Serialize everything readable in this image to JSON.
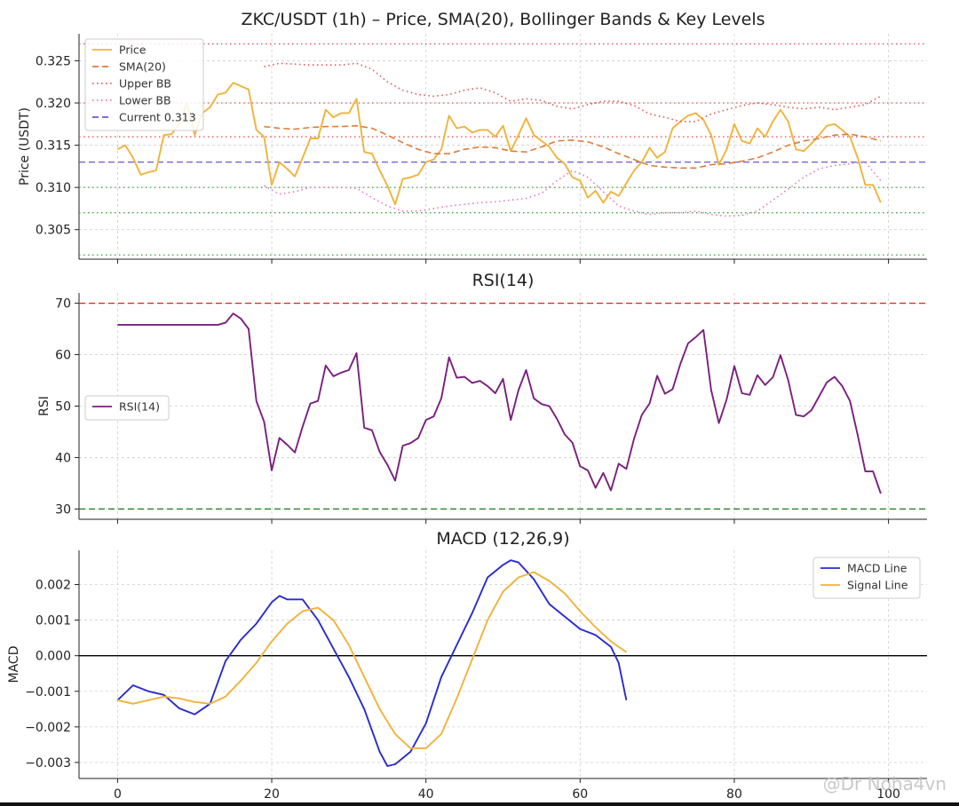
{
  "watermark": "@Dr Noha4vn",
  "chart_data": [
    {
      "type": "line",
      "title": "ZKC/USDT (1h) – Price, SMA(20), Bollinger Bands & Key Levels",
      "ylabel": "Price (USDT)",
      "xlim": [
        -5,
        105
      ],
      "ylim": [
        0.3015,
        0.3282
      ],
      "yticks": [
        0.305,
        0.31,
        0.315,
        0.32,
        0.325
      ],
      "ytick_labels": [
        "0.305",
        "0.310",
        "0.315",
        "0.320",
        "0.325"
      ],
      "grid": true,
      "legend_position": "top-left",
      "series": [
        {
          "name": "Price",
          "color": "#f0b33b",
          "x": [
            0,
            1,
            2,
            3,
            4,
            5,
            6,
            7,
            8,
            9,
            10,
            11,
            12,
            13,
            14,
            15,
            16,
            17,
            18,
            19,
            20,
            21,
            22,
            23,
            24,
            25,
            26,
            27,
            28,
            29,
            30,
            31,
            32,
            33,
            34,
            35,
            36,
            37,
            38,
            39,
            40,
            41,
            42,
            43,
            44,
            45,
            46,
            47,
            48,
            49,
            50,
            51,
            52,
            53,
            54,
            55,
            56,
            57,
            58,
            59,
            60,
            61,
            62,
            63,
            64,
            65,
            66,
            67,
            68,
            69,
            70,
            71,
            72,
            73,
            74,
            75,
            76,
            77,
            78,
            79,
            80,
            81,
            82,
            83,
            84,
            85,
            86,
            87,
            88,
            89,
            90,
            91,
            92,
            93,
            94,
            95,
            96,
            97,
            98,
            99
          ],
          "y": [
            0.3145,
            0.315,
            0.3135,
            0.3115,
            0.3118,
            0.312,
            0.3162,
            0.3163,
            0.3175,
            0.32,
            0.3162,
            0.3188,
            0.3195,
            0.321,
            0.3212,
            0.3224,
            0.322,
            0.3216,
            0.3168,
            0.316,
            0.3103,
            0.313,
            0.3122,
            0.3113,
            0.3135,
            0.3158,
            0.3158,
            0.3192,
            0.3183,
            0.3188,
            0.3188,
            0.3205,
            0.3142,
            0.314,
            0.312,
            0.3102,
            0.308,
            0.311,
            0.3112,
            0.3115,
            0.313,
            0.3133,
            0.3145,
            0.3185,
            0.317,
            0.3172,
            0.3165,
            0.3168,
            0.3168,
            0.316,
            0.3173,
            0.3143,
            0.3162,
            0.3182,
            0.3162,
            0.3155,
            0.3148,
            0.3135,
            0.3128,
            0.3112,
            0.3108,
            0.3088,
            0.3096,
            0.3082,
            0.3095,
            0.309,
            0.3105,
            0.312,
            0.313,
            0.3147,
            0.3135,
            0.3142,
            0.317,
            0.3178,
            0.3185,
            0.3188,
            0.318,
            0.3162,
            0.3127,
            0.3145,
            0.3175,
            0.3155,
            0.3152,
            0.317,
            0.316,
            0.3178,
            0.3192,
            0.3178,
            0.3145,
            0.3143,
            0.3152,
            0.3162,
            0.3173,
            0.3175,
            0.3168,
            0.316,
            0.3135,
            0.3103,
            0.3103,
            0.3082
          ]
        },
        {
          "name": "SMA(20)",
          "color": "#e07b39",
          "dash": "dashed",
          "x": [
            19,
            21,
            23,
            25,
            27,
            29,
            31,
            33,
            35,
            37,
            39,
            41,
            43,
            45,
            47,
            49,
            51,
            53,
            55,
            57,
            59,
            61,
            63,
            65,
            67,
            69,
            71,
            73,
            75,
            77,
            79,
            81,
            83,
            85,
            87,
            89,
            91,
            93,
            95,
            97,
            99
          ],
          "y": [
            0.3172,
            0.317,
            0.3169,
            0.3171,
            0.3172,
            0.3172,
            0.3173,
            0.317,
            0.3162,
            0.3153,
            0.3145,
            0.314,
            0.314,
            0.3145,
            0.3148,
            0.3147,
            0.3143,
            0.3142,
            0.3148,
            0.3155,
            0.3156,
            0.3154,
            0.3148,
            0.314,
            0.3133,
            0.3126,
            0.3124,
            0.3123,
            0.3123,
            0.3127,
            0.3128,
            0.3131,
            0.3135,
            0.3142,
            0.315,
            0.3155,
            0.3158,
            0.3162,
            0.3163,
            0.316,
            0.3155
          ]
        },
        {
          "name": "Upper BB",
          "color": "#e05555",
          "dash": "dotted",
          "x": [
            19,
            21,
            23,
            25,
            27,
            29,
            31,
            33,
            35,
            37,
            39,
            41,
            43,
            45,
            47,
            49,
            51,
            53,
            55,
            57,
            59,
            61,
            63,
            65,
            67,
            69,
            71,
            73,
            75,
            77,
            79,
            81,
            83,
            85,
            87,
            89,
            91,
            93,
            95,
            97,
            99
          ],
          "y": [
            0.3243,
            0.3247,
            0.3246,
            0.3245,
            0.3245,
            0.3245,
            0.3247,
            0.324,
            0.3225,
            0.3215,
            0.321,
            0.3208,
            0.321,
            0.3215,
            0.3218,
            0.3212,
            0.3202,
            0.3205,
            0.3203,
            0.3196,
            0.3193,
            0.3198,
            0.3202,
            0.3202,
            0.3197,
            0.3187,
            0.3183,
            0.3178,
            0.3178,
            0.3187,
            0.3192,
            0.3197,
            0.32,
            0.3198,
            0.3195,
            0.3193,
            0.3195,
            0.3192,
            0.3195,
            0.3198,
            0.3208
          ]
        },
        {
          "name": "Lower BB",
          "color": "#e377c2",
          "dash": "dotted",
          "x": [
            19,
            21,
            23,
            25,
            27,
            29,
            31,
            33,
            35,
            37,
            39,
            41,
            43,
            45,
            47,
            49,
            51,
            53,
            55,
            57,
            59,
            61,
            63,
            65,
            67,
            69,
            71,
            73,
            75,
            77,
            79,
            81,
            83,
            85,
            87,
            89,
            91,
            93,
            95,
            97,
            99
          ],
          "y": [
            0.3102,
            0.3092,
            0.3095,
            0.31,
            0.31,
            0.31,
            0.3099,
            0.3088,
            0.3078,
            0.3072,
            0.3072,
            0.3075,
            0.3078,
            0.308,
            0.3082,
            0.3083,
            0.3085,
            0.3087,
            0.3093,
            0.3108,
            0.312,
            0.3112,
            0.3095,
            0.3078,
            0.3072,
            0.3068,
            0.307,
            0.307,
            0.3072,
            0.3068,
            0.3066,
            0.3067,
            0.3072,
            0.3085,
            0.3098,
            0.3112,
            0.3122,
            0.3126,
            0.3128,
            0.313,
            0.3108
          ]
        }
      ],
      "hlines": [
        {
          "name": "Current 0.313",
          "value": 0.313,
          "color": "#6a5acd",
          "dash": "dashed",
          "in_legend": true
        },
        {
          "value": 0.327,
          "color": "#e05555",
          "dash": "dotted"
        },
        {
          "value": 0.32,
          "color": "#e05555",
          "dash": "dotted"
        },
        {
          "value": 0.316,
          "color": "#e05555",
          "dash": "dotted"
        },
        {
          "value": 0.31,
          "color": "#3aa13a",
          "dash": "dotted"
        },
        {
          "value": 0.307,
          "color": "#3aa13a",
          "dash": "dotted"
        },
        {
          "value": 0.302,
          "color": "#3aa13a",
          "dash": "dotted"
        }
      ]
    },
    {
      "type": "line",
      "title": "RSI(14)",
      "ylabel": "RSI",
      "xlim": [
        -5,
        105
      ],
      "ylim": [
        28,
        72
      ],
      "yticks": [
        30,
        40,
        50,
        60,
        70
      ],
      "ytick_labels": [
        "30",
        "40",
        "50",
        "60",
        "70"
      ],
      "grid": true,
      "legend_position": "center-left",
      "series": [
        {
          "name": "RSI(14)",
          "color": "#7b1f7e",
          "x": [
            0,
            1,
            2,
            3,
            4,
            5,
            6,
            7,
            8,
            9,
            10,
            11,
            12,
            13,
            14,
            15,
            16,
            17,
            18,
            19,
            20,
            21,
            22,
            23,
            24,
            25,
            26,
            27,
            28,
            29,
            30,
            31,
            32,
            33,
            34,
            35,
            36,
            37,
            38,
            39,
            40,
            41,
            42,
            43,
            44,
            45,
            46,
            47,
            48,
            49,
            50,
            51,
            52,
            53,
            54,
            55,
            56,
            57,
            58,
            59,
            60,
            61,
            62,
            63,
            64,
            65,
            66,
            67,
            68,
            69,
            70,
            71,
            72,
            73,
            74,
            75,
            76,
            77,
            78,
            79,
            80,
            81,
            82,
            83,
            84,
            85,
            86,
            87,
            88,
            89,
            90,
            91,
            92,
            93,
            94,
            95,
            96,
            97,
            98,
            99
          ],
          "y": [
            65.8,
            65.8,
            65.8,
            65.8,
            65.8,
            65.8,
            65.8,
            65.8,
            65.8,
            65.8,
            65.8,
            65.8,
            65.8,
            65.8,
            66.2,
            68,
            67,
            65,
            51,
            47,
            37.5,
            43.8,
            42.5,
            41,
            46,
            50.5,
            51,
            57.9,
            55.8,
            56.5,
            57,
            60.3,
            45.8,
            45.3,
            41.1,
            38.6,
            35.5,
            42.3,
            42.8,
            43.8,
            47.3,
            48,
            51.5,
            59.5,
            55.5,
            55.7,
            54.5,
            54.9,
            53.9,
            52.5,
            55.3,
            47.3,
            53.1,
            57,
            51.5,
            50.4,
            50,
            47.5,
            44.5,
            42.9,
            38.3,
            37.5,
            34.1,
            37,
            33.6,
            38.8,
            37.8,
            43.7,
            48.3,
            50.5,
            55.9,
            52.4,
            53.3,
            58.2,
            62.2,
            63.4,
            64.8,
            53.1,
            46.7,
            51.3,
            57.8,
            52.5,
            52.2,
            56,
            54.1,
            55.6,
            59.9,
            55,
            48.3,
            48,
            49.2,
            51.9,
            54.6,
            55.7,
            53.9,
            51,
            44.4,
            37.3,
            37.3,
            33
          ]
        }
      ],
      "hlines": [
        {
          "value": 70,
          "color": "#e02020",
          "dash": "dashed"
        },
        {
          "value": 30,
          "color": "#1a7a1a",
          "dash": "dashed"
        }
      ]
    },
    {
      "type": "line",
      "title": "MACD (12,26,9)",
      "ylabel": "MACD",
      "xlim": [
        -5,
        105
      ],
      "ylim": [
        -0.00345,
        0.00296
      ],
      "xticks": [
        0,
        20,
        40,
        60,
        80,
        100
      ],
      "xtick_labels": [
        "0",
        "20",
        "40",
        "60",
        "80",
        "100"
      ],
      "yticks": [
        -0.003,
        -0.002,
        -0.001,
        0.0,
        0.001,
        0.002
      ],
      "ytick_labels": [
        "−0.003",
        "−0.002",
        "−0.001",
        "0.000",
        "0.001",
        "0.002"
      ],
      "grid": true,
      "legend_position": "top-right",
      "series": [
        {
          "name": "MACD Line",
          "color": "#2a2acf",
          "x": [
            0,
            2,
            4,
            6,
            8,
            10,
            12,
            14,
            16,
            18,
            20,
            21,
            22,
            24,
            26,
            28,
            30,
            32,
            34,
            35,
            36,
            38,
            40,
            42,
            44,
            46,
            48,
            50,
            51,
            52,
            54,
            56,
            58,
            60,
            62,
            64,
            65,
            66
          ],
          "y": [
            -0.00125,
            -0.00083,
            -0.001,
            -0.0011,
            -0.00148,
            -0.00165,
            -0.00135,
            -0.00015,
            0.00045,
            0.0009,
            0.0015,
            0.00168,
            0.00158,
            0.00158,
            0.001,
            0.0002,
            -0.0006,
            -0.0015,
            -0.0027,
            -0.0031,
            -0.00305,
            -0.0027,
            -0.0019,
            -0.0006,
            0.0003,
            0.0012,
            0.0022,
            0.00255,
            0.00268,
            0.00262,
            0.00215,
            0.00145,
            0.0011,
            0.00075,
            0.00058,
            0.00025,
            -0.0002,
            -0.00125
          ]
        },
        {
          "name": "Signal Line",
          "color": "#f0b33b",
          "x": [
            0,
            2,
            4,
            6,
            8,
            10,
            12,
            14,
            16,
            18,
            20,
            22,
            24,
            26,
            28,
            30,
            32,
            34,
            36,
            38,
            40,
            42,
            44,
            46,
            48,
            50,
            52,
            54,
            56,
            58,
            60,
            62,
            64,
            66
          ],
          "y": [
            -0.00125,
            -0.00135,
            -0.00125,
            -0.00115,
            -0.0012,
            -0.0013,
            -0.00135,
            -0.00115,
            -0.0007,
            -0.0002,
            0.0004,
            0.0009,
            0.00125,
            0.00135,
            0.001,
            0.0003,
            -0.0006,
            -0.0015,
            -0.0022,
            -0.0026,
            -0.0026,
            -0.0022,
            -0.0012,
            -0.0001,
            0.001,
            0.0018,
            0.0022,
            0.00235,
            0.0021,
            0.00175,
            0.00125,
            0.0008,
            0.0004,
            0.0001
          ]
        }
      ],
      "hlines": [
        {
          "value": 0,
          "color": "#000000",
          "dash": "solid"
        }
      ]
    }
  ]
}
